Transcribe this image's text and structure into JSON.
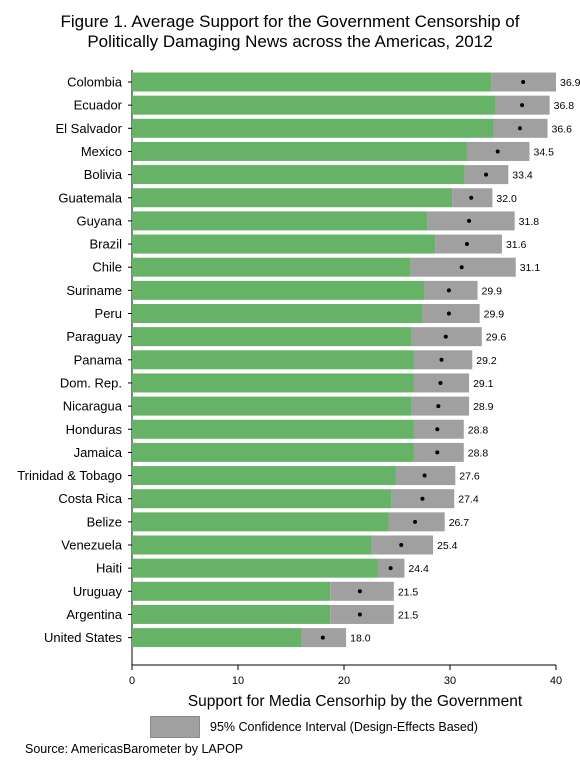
{
  "chart_data": {
    "type": "bar",
    "orientation": "horizontal",
    "title_line1": "Figure 1. Average Support for the Government Censorship of",
    "title_line2": "Politically Damaging News across the Americas, 2012",
    "xlabel": "Support for Media Censorhip by the Government",
    "ylabel": "",
    "xlim": [
      0,
      40
    ],
    "xticks": [
      0,
      10,
      20,
      30,
      40
    ],
    "legend": {
      "label": "95% Confidence Interval (Design-Effects Based)",
      "placement": "bottom"
    },
    "source": "Source: AmericasBarometer by LAPOP",
    "categories": [
      "Colombia",
      "Ecuador",
      "El Salvador",
      "Mexico",
      "Bolivia",
      "Guatemala",
      "Guyana",
      "Brazil",
      "Chile",
      "Suriname",
      "Peru",
      "Paraguay",
      "Panama",
      "Dom. Rep.",
      "Nicaragua",
      "Honduras",
      "Jamaica",
      "Trinidad & Tobago",
      "Costa Rica",
      "Belize",
      "Venezuela",
      "Haiti",
      "Uruguay",
      "Argentina",
      "United States"
    ],
    "values": [
      36.9,
      36.8,
      36.6,
      34.5,
      33.4,
      32.0,
      31.8,
      31.6,
      31.1,
      29.9,
      29.9,
      29.6,
      29.2,
      29.1,
      28.9,
      28.8,
      28.8,
      27.6,
      27.4,
      26.7,
      25.4,
      24.4,
      21.5,
      21.5,
      18.0
    ],
    "value_labels": [
      "36.9",
      "36.8",
      "36.6",
      "34.5",
      "33.4",
      "32.0",
      "31.8",
      "31.6",
      "31.1",
      "29.9",
      "29.9",
      "29.6",
      "29.2",
      "29.1",
      "28.9",
      "28.8",
      "28.8",
      "27.6",
      "27.4",
      "26.7",
      "25.4",
      "24.4",
      "21.5",
      "21.5",
      "18.0"
    ],
    "ci_lower": [
      33.9,
      34.3,
      34.1,
      31.6,
      31.4,
      30.2,
      27.9,
      28.6,
      26.3,
      27.6,
      27.4,
      26.4,
      26.6,
      26.6,
      26.4,
      26.6,
      26.6,
      24.9,
      24.5,
      24.2,
      22.6,
      23.2,
      18.7,
      18.7,
      16.0
    ],
    "ci_upper": [
      40.0,
      39.4,
      39.2,
      37.5,
      35.5,
      34.0,
      36.1,
      34.9,
      36.2,
      32.6,
      32.8,
      33.0,
      32.1,
      31.8,
      31.8,
      31.3,
      31.3,
      30.5,
      30.4,
      29.5,
      28.4,
      25.7,
      24.7,
      24.7,
      20.2
    ],
    "colors": {
      "bar": "#66b266",
      "ci": "#a0a0a0",
      "point": "#000000"
    },
    "grid": false
  }
}
